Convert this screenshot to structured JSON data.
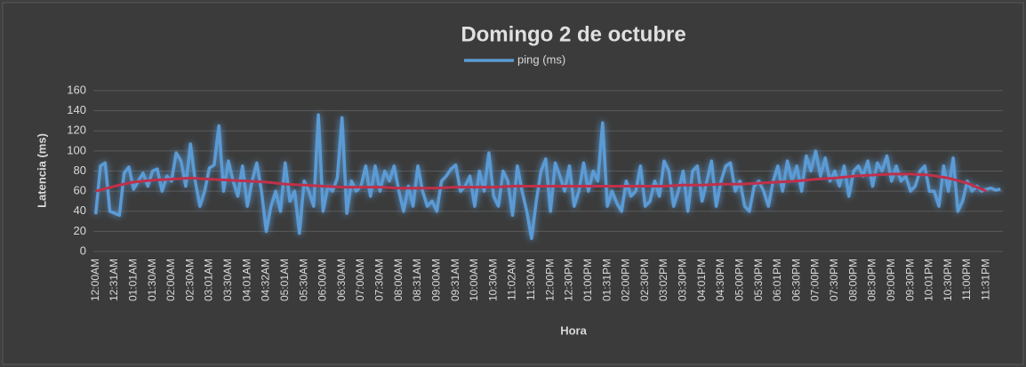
{
  "chart_data": {
    "type": "line",
    "title": "Domingo 2 de octubre",
    "x_label": "Hora",
    "y_label": "Latencia (ms)",
    "legend": "top",
    "grid": true,
    "ylim": [
      0,
      160
    ],
    "yticks": [
      0,
      20,
      40,
      60,
      80,
      100,
      120,
      140,
      160
    ],
    "categories": [
      "12:00AM",
      null,
      null,
      null,
      "12:31AM",
      null,
      null,
      null,
      "01:01AM",
      null,
      null,
      null,
      "01:30AM",
      null,
      null,
      null,
      "02:00AM",
      null,
      null,
      null,
      "02:30AM",
      null,
      null,
      null,
      "03:01AM",
      null,
      null,
      null,
      "03:30AM",
      null,
      null,
      null,
      "04:01AM",
      null,
      null,
      null,
      "04:32AM",
      null,
      null,
      null,
      "05:01AM",
      null,
      null,
      null,
      "05:30AM",
      null,
      null,
      null,
      "06:00AM",
      null,
      null,
      null,
      "06:30AM",
      null,
      null,
      null,
      "07:00AM",
      null,
      null,
      null,
      "07:30AM",
      null,
      null,
      null,
      "08:00AM",
      null,
      null,
      null,
      "08:31AM",
      null,
      null,
      null,
      "09:00AM",
      null,
      null,
      null,
      "09:31AM",
      null,
      null,
      null,
      "10:00AM",
      null,
      null,
      null,
      "10:30AM",
      null,
      null,
      null,
      "11:02AM",
      null,
      null,
      null,
      "11:30AM",
      null,
      null,
      null,
      "12:00PM",
      null,
      null,
      null,
      "12:30PM",
      null,
      null,
      null,
      "01:00PM",
      null,
      null,
      null,
      "01:31PM",
      null,
      null,
      null,
      "02:00PM",
      null,
      null,
      null,
      "02:30PM",
      null,
      null,
      null,
      "03:02PM",
      null,
      null,
      null,
      "03:30PM",
      null,
      null,
      null,
      "04:01PM",
      null,
      null,
      null,
      "04:30PM",
      null,
      null,
      null,
      "05:00PM",
      null,
      null,
      null,
      "05:30PM",
      null,
      null,
      null,
      "06:01PM",
      null,
      null,
      null,
      "06:30PM",
      null,
      null,
      null,
      "07:00PM",
      null,
      null,
      null,
      "07:30PM",
      null,
      null,
      null,
      "08:00PM",
      null,
      null,
      null,
      "08:30PM",
      null,
      null,
      null,
      "09:00PM",
      null,
      null,
      null,
      "09:30PM",
      null,
      null,
      null,
      "10:01PM",
      null,
      null,
      null,
      "10:30PM",
      null,
      null,
      null,
      "11:00PM",
      null,
      null,
      null,
      "11:31PM",
      null,
      null,
      null
    ],
    "series": [
      {
        "name": "ping (ms)",
        "color": "#5b9bd5",
        "values": [
          37,
          85,
          88,
          40,
          38,
          36,
          78,
          84,
          62,
          70,
          78,
          65,
          80,
          82,
          60,
          75,
          70,
          98,
          90,
          65,
          107,
          70,
          45,
          60,
          83,
          86,
          125,
          60,
          90,
          70,
          55,
          85,
          45,
          70,
          88,
          60,
          20,
          45,
          60,
          40,
          88,
          50,
          60,
          18,
          70,
          60,
          45,
          136,
          40,
          65,
          60,
          73,
          133,
          38,
          70,
          60,
          65,
          85,
          55,
          85,
          60,
          80,
          70,
          85,
          60,
          40,
          65,
          45,
          85,
          60,
          45,
          50,
          40,
          70,
          75,
          82,
          86,
          60,
          65,
          75,
          45,
          80,
          60,
          98,
          55,
          45,
          80,
          70,
          36,
          85,
          60,
          40,
          13,
          50,
          80,
          92,
          40,
          88,
          75,
          60,
          85,
          45,
          60,
          88,
          60,
          80,
          70,
          128,
          45,
          60,
          48,
          40,
          70,
          55,
          60,
          85,
          45,
          50,
          70,
          55,
          90,
          80,
          45,
          60,
          80,
          40,
          80,
          85,
          50,
          70,
          90,
          45,
          70,
          85,
          88,
          60,
          70,
          45,
          40,
          65,
          70,
          60,
          45,
          70,
          85,
          60,
          90,
          70,
          85,
          60,
          95,
          80,
          100,
          75,
          93,
          70,
          80,
          65,
          85,
          55,
          80,
          85,
          75,
          90,
          65,
          88,
          80,
          95,
          70,
          85,
          70,
          75,
          60,
          65,
          80,
          85,
          60,
          60,
          45,
          85,
          60,
          93,
          40,
          50,
          70,
          60,
          65,
          60,
          62,
          63,
          61,
          62
        ]
      }
    ],
    "trendline": {
      "color": "#c0304a",
      "values": [
        60,
        65,
        69,
        71,
        72,
        73,
        72,
        71,
        70,
        69,
        67,
        66,
        65,
        64,
        64,
        64,
        63,
        63,
        63,
        64,
        64,
        64,
        65,
        65,
        65,
        65,
        65,
        65,
        65,
        65,
        65,
        66,
        66,
        67,
        67,
        68,
        69,
        70,
        72,
        73,
        75,
        76,
        77,
        77,
        76,
        73,
        68,
        60
      ]
    }
  }
}
